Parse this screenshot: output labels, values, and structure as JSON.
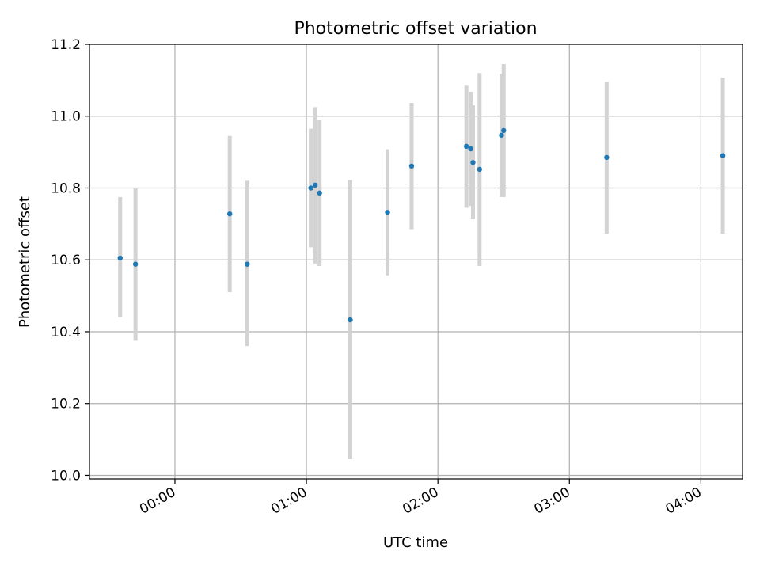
{
  "chart_data": {
    "type": "scatter",
    "title": "Photometric offset variation",
    "xlabel": "UTC time",
    "ylabel": "Photometric offset",
    "x_scale": "time",
    "xlim": [
      "23:21",
      "04:19"
    ],
    "ylim": [
      9.99,
      11.2
    ],
    "grid": true,
    "x_ticks": [
      "00:00",
      "01:00",
      "02:00",
      "03:00",
      "04:00"
    ],
    "y_ticks": [
      "10.0",
      "10.2",
      "10.4",
      "10.6",
      "10.8",
      "11.0",
      "11.2"
    ],
    "colors": {
      "point": "#1f77b4",
      "errorbar": "#d3d3d3",
      "grid": "#b0b0b0",
      "axes": "#000000"
    },
    "series": [
      {
        "points": [
          {
            "time": "23:35",
            "y": 10.605,
            "ymin": 10.44,
            "ymax": 10.775
          },
          {
            "time": "23:42",
            "y": 10.588,
            "ymin": 10.375,
            "ymax": 10.8
          },
          {
            "time": "00:25",
            "y": 10.728,
            "ymin": 10.51,
            "ymax": 10.945
          },
          {
            "time": "00:33",
            "y": 10.588,
            "ymin": 10.36,
            "ymax": 10.82
          },
          {
            "time": "01:02",
            "y": 10.8,
            "ymin": 10.635,
            "ymax": 10.965
          },
          {
            "time": "01:04",
            "y": 10.808,
            "ymin": 10.59,
            "ymax": 11.025
          },
          {
            "time": "01:06",
            "y": 10.786,
            "ymin": 10.583,
            "ymax": 10.99
          },
          {
            "time": "01:20",
            "y": 10.433,
            "ymin": 10.045,
            "ymax": 10.822
          },
          {
            "time": "01:37",
            "y": 10.732,
            "ymin": 10.557,
            "ymax": 10.908
          },
          {
            "time": "01:48",
            "y": 10.861,
            "ymin": 10.685,
            "ymax": 11.037
          },
          {
            "time": "02:13",
            "y": 10.916,
            "ymin": 10.745,
            "ymax": 11.087
          },
          {
            "time": "02:15",
            "y": 10.909,
            "ymin": 10.75,
            "ymax": 11.068
          },
          {
            "time": "02:16",
            "y": 10.871,
            "ymin": 10.713,
            "ymax": 11.03
          },
          {
            "time": "02:19",
            "y": 10.852,
            "ymin": 10.583,
            "ymax": 11.12
          },
          {
            "time": "02:29",
            "y": 10.947,
            "ymin": 10.775,
            "ymax": 11.118
          },
          {
            "time": "02:30",
            "y": 10.96,
            "ymin": 10.775,
            "ymax": 11.145
          },
          {
            "time": "03:17",
            "y": 10.885,
            "ymin": 10.673,
            "ymax": 11.095
          },
          {
            "time": "04:10",
            "y": 10.89,
            "ymin": 10.673,
            "ymax": 11.107
          }
        ]
      }
    ]
  }
}
